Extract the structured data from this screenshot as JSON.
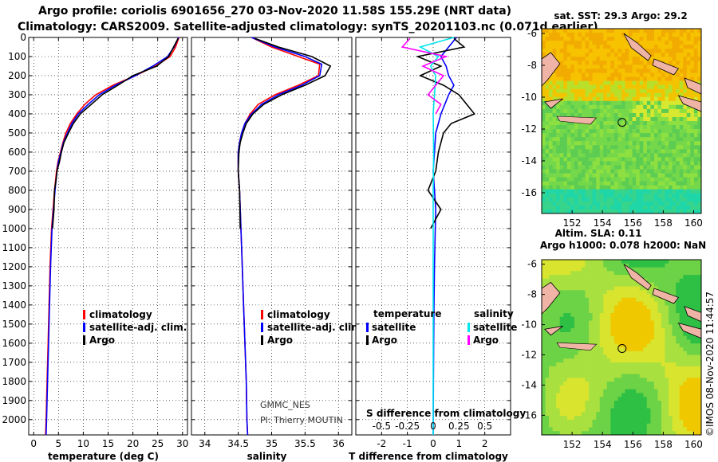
{
  "titles": {
    "line1": "Argo profile: coriolis 6901656_270 03-Nov-2020 11.58S 155.29E (NRT data)",
    "line2": "Climatology: CARS2009. Satellite-adjusted climatology: synTS_20201103.nc (0.071d earlier)"
  },
  "colors": {
    "climatology": "#ff0000",
    "satellite": "#0000ff",
    "argo": "#000000",
    "sat_salinity": "#00e5ee",
    "argo_salinity": "#ff00ff"
  },
  "depth_axis": {
    "ticks": [
      "0",
      "100",
      "200",
      "300",
      "400",
      "500",
      "600",
      "700",
      "800",
      "900",
      "1000",
      "1100",
      "1200",
      "1300",
      "1400",
      "1500",
      "1600",
      "1700",
      "1800",
      "1900",
      "2000"
    ]
  },
  "chart_data": [
    {
      "type": "line",
      "name": "temperature-profile",
      "xlabel": "temperature (deg C)",
      "xticks": [
        "0",
        "5",
        "10",
        "15",
        "20",
        "25",
        "30"
      ],
      "xlim": [
        -1,
        31
      ],
      "ylim": [
        2080,
        0
      ],
      "legend": [
        {
          "label": "climatology",
          "color": "#ff0000"
        },
        {
          "label": "satellite-adj. clim.",
          "color": "#0000ff"
        },
        {
          "label": "Argo",
          "color": "#000000"
        }
      ],
      "series": [
        {
          "name": "climatology",
          "color": "#ff0000",
          "x": [
            29.3,
            28.6,
            27.5,
            24.5,
            20.5,
            16.0,
            12.5,
            10.3,
            8.7,
            7.4,
            6.5,
            5.9,
            5.4,
            4.9,
            4.6,
            4.4,
            4.2,
            3.9,
            3.6,
            3.3,
            3.1,
            2.9,
            2.7,
            2.5,
            2.4
          ],
          "y": [
            0,
            50,
            100,
            150,
            200,
            250,
            300,
            350,
            400,
            450,
            500,
            550,
            600,
            650,
            700,
            750,
            800,
            900,
            1000,
            1200,
            1400,
            1600,
            1800,
            2000,
            2080
          ]
        },
        {
          "name": "satellite",
          "color": "#0000ff",
          "x": [
            29.2,
            28.3,
            27.0,
            24.0,
            20.5,
            16.5,
            13.2,
            11.0,
            9.0,
            7.7,
            6.8,
            6.0,
            5.5,
            5.0,
            4.7,
            4.5,
            4.3,
            4.0,
            3.7,
            3.4,
            3.2,
            3.0,
            2.8,
            2.6,
            2.5
          ],
          "y": [
            0,
            50,
            100,
            150,
            200,
            250,
            300,
            350,
            400,
            450,
            500,
            550,
            600,
            650,
            700,
            750,
            800,
            900,
            1000,
            1200,
            1400,
            1600,
            1800,
            2000,
            2080
          ]
        },
        {
          "name": "Argo",
          "color": "#000000",
          "x": [
            29.1,
            28.2,
            27.2,
            24.8,
            20.0,
            17.0,
            13.8,
            11.6,
            9.4,
            8.0,
            7.0,
            6.1,
            5.6,
            5.2,
            4.7,
            4.5,
            4.2,
            4.1,
            3.8
          ],
          "y": [
            5,
            50,
            100,
            150,
            200,
            250,
            300,
            350,
            400,
            450,
            500,
            550,
            600,
            650,
            700,
            750,
            800,
            900,
            1000
          ]
        }
      ]
    },
    {
      "type": "line",
      "name": "salinity-profile",
      "xlabel": "salinity",
      "xticks": [
        "34",
        "34.5",
        "35",
        "35.5",
        "36"
      ],
      "xlim": [
        33.8,
        36.2
      ],
      "ylim": [
        2080,
        0
      ],
      "legend": [
        {
          "label": "climatology",
          "color": "#ff0000"
        },
        {
          "label": "satellite-adj. clim.",
          "color": "#0000ff"
        },
        {
          "label": "Argo",
          "color": "#000000"
        }
      ],
      "annotations": [
        "GMMC_NES",
        "PI: Thierry MOUTIN"
      ],
      "series": [
        {
          "name": "climatology",
          "color": "#ff0000",
          "x": [
            34.7,
            35.0,
            35.4,
            35.72,
            35.7,
            35.4,
            35.05,
            34.8,
            34.68,
            34.6,
            34.55,
            34.52,
            34.5,
            34.5,
            34.52,
            34.54,
            34.56,
            34.58,
            34.6,
            34.62,
            34.63,
            34.64
          ],
          "y": [
            0,
            50,
            100,
            140,
            200,
            250,
            300,
            350,
            400,
            450,
            500,
            550,
            600,
            700,
            800,
            1000,
            1200,
            1400,
            1600,
            1800,
            2000,
            2080
          ]
        },
        {
          "name": "satellite",
          "color": "#0000ff",
          "x": [
            34.7,
            35.05,
            35.5,
            35.75,
            35.72,
            35.45,
            35.1,
            34.85,
            34.7,
            34.6,
            34.55,
            34.52,
            34.5,
            34.5,
            34.52,
            34.54,
            34.56,
            34.58,
            34.6,
            34.62,
            34.63,
            34.64
          ],
          "y": [
            0,
            50,
            100,
            140,
            200,
            250,
            300,
            350,
            400,
            450,
            500,
            550,
            600,
            700,
            800,
            1000,
            1200,
            1400,
            1600,
            1800,
            2000,
            2080
          ]
        },
        {
          "name": "Argo",
          "color": "#000000",
          "x": [
            34.75,
            35.1,
            35.6,
            35.88,
            35.8,
            35.5,
            35.15,
            34.88,
            34.72,
            34.62,
            34.57,
            34.53,
            34.51,
            34.5,
            34.52,
            34.53
          ],
          "y": [
            5,
            50,
            100,
            150,
            200,
            250,
            300,
            350,
            400,
            450,
            500,
            550,
            600,
            700,
            800,
            1000
          ]
        }
      ]
    },
    {
      "type": "line",
      "name": "difference-profile",
      "xlabel": "T difference from climatology",
      "xticks": [
        "-2",
        "-1",
        "0",
        "1",
        "2"
      ],
      "xlim": [
        -3,
        3
      ],
      "secondary_xlabel": "S difference from climatology",
      "secondary_xticks": [
        "-0.5",
        "-0.25",
        "0",
        "0.25",
        "0.5"
      ],
      "legend": [
        {
          "label": "temperature",
          "color": "#000000"
        },
        {
          "label": "satellite",
          "color": "#0000ff"
        },
        {
          "label": "Argo",
          "color": "#000000"
        },
        {
          "label": "salinity",
          "color": "#000000"
        },
        {
          "label": "satellite",
          "color": "#00e5ee"
        },
        {
          "label": "Argo",
          "color": "#ff00ff"
        }
      ],
      "series": [
        {
          "name": "T satellite",
          "color": "#0000ff",
          "x": [
            0.9,
            0.6,
            0.3,
            0.5,
            0.6,
            0.8,
            0.6,
            0.3,
            0.1,
            0.05,
            0.0,
            0.05,
            0.1,
            0.08,
            0.05,
            0.03,
            0.02,
            0.01,
            0.0
          ],
          "y": [
            0,
            50,
            100,
            150,
            200,
            250,
            300,
            400,
            500,
            600,
            700,
            800,
            900,
            1000,
            1200,
            1400,
            1600,
            1800,
            2080
          ]
        },
        {
          "name": "T Argo",
          "color": "#000000",
          "x": [
            0.8,
            1.2,
            -0.6,
            0.3,
            -0.5,
            0.4,
            1.0,
            1.6,
            0.7,
            0.4,
            0.2,
            0.1,
            -0.2,
            0.3,
            -0.1
          ],
          "y": [
            5,
            50,
            100,
            150,
            200,
            250,
            300,
            400,
            450,
            500,
            600,
            700,
            800,
            900,
            1000
          ]
        },
        {
          "name": "S satellite",
          "color": "#00e5ee",
          "x": [
            0.8,
            -0.5,
            0.2,
            -0.1,
            0.1,
            0.05,
            0.0,
            0.02,
            0.0,
            0.0,
            0.0,
            0.0
          ],
          "y": [
            0,
            50,
            100,
            150,
            200,
            300,
            400,
            600,
            800,
            1200,
            1600,
            2080
          ]
        },
        {
          "name": "S Argo",
          "color": "#ff00ff",
          "x": [
            -0.9,
            -1.2,
            0.5,
            -0.4,
            0.4,
            0.1,
            -0.2,
            0.3,
            0.1
          ],
          "y": [
            5,
            50,
            100,
            150,
            200,
            250,
            300,
            350,
            400
          ]
        }
      ]
    },
    {
      "type": "heatmap",
      "name": "sst-map",
      "title": "sat. SST: 29.3 Argo: 29.2",
      "xticks": [
        "152",
        "154",
        "156",
        "158",
        "160"
      ],
      "yticks": [
        "-6",
        "-8",
        "-10",
        "-12",
        "-14",
        "-16"
      ],
      "xlim": [
        150.0,
        160.5
      ],
      "ylim": [
        -17.3,
        -5.7
      ],
      "marker": {
        "lon": 155.29,
        "lat": -11.58
      }
    },
    {
      "type": "heatmap",
      "name": "sla-map",
      "title": "Altim. SLA: 0.11",
      "subtitle": "Argo h1000: 0.078 h2000: NaN",
      "xticks": [
        "152",
        "154",
        "156",
        "158",
        "160"
      ],
      "yticks": [
        "-6",
        "-8",
        "-10",
        "-12",
        "-14",
        "-16"
      ],
      "xlim": [
        150.0,
        160.5
      ],
      "ylim": [
        -17.3,
        -5.7
      ],
      "marker": {
        "lon": 155.29,
        "lat": -11.58
      }
    }
  ],
  "credit": "©IMOS 08-Nov-2020 11:44:57"
}
